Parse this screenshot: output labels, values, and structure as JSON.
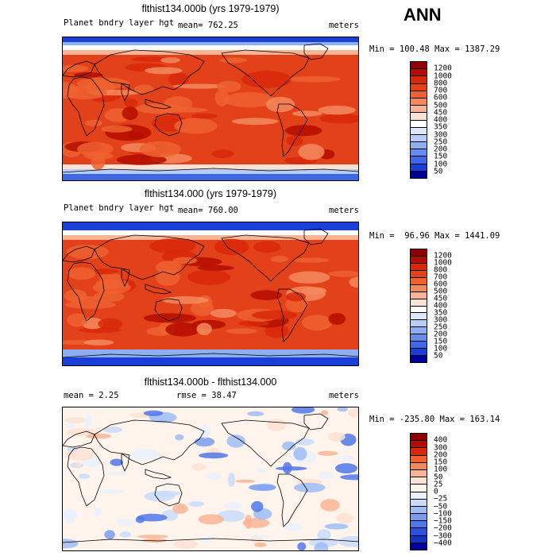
{
  "season": "ANN",
  "panels": [
    {
      "title": "flthist134.000b (yrs 1979-1979)",
      "left_label": "Planet bndry layer hgt",
      "mean_label": "mean= 762.25",
      "units": "meters",
      "minmax": "Min = 100.48 Max = 1387.29",
      "kind": "field",
      "colorbar": {
        "labels": [
          "1200",
          "1000",
          "800",
          "700",
          "600",
          "500",
          "450",
          "400",
          "350",
          "300",
          "250",
          "200",
          "150",
          "100",
          "50"
        ],
        "colors": [
          "#8b0000",
          "#b40d00",
          "#d8280a",
          "#e2411a",
          "#ee6130",
          "#f48a5e",
          "#f9b496",
          "#fde1d2",
          "#ffffff",
          "#dbe7fb",
          "#b5cdf7",
          "#8eaef2",
          "#668ded",
          "#3f67e6",
          "#1a3fd8",
          "#000098"
        ]
      }
    },
    {
      "title": "flthist134.000 (yrs 1979-1979)",
      "left_label": "Planet bndry layer hgt",
      "mean_label": "mean= 760.00",
      "units": "meters",
      "minmax": "Min =  96.96 Max = 1441.09",
      "kind": "field",
      "colorbar": {
        "labels": [
          "1200",
          "1000",
          "800",
          "700",
          "600",
          "500",
          "450",
          "400",
          "350",
          "300",
          "250",
          "200",
          "150",
          "100",
          "50"
        ],
        "colors": [
          "#8b0000",
          "#b40d00",
          "#d8280a",
          "#e2411a",
          "#ee6130",
          "#f48a5e",
          "#f9b496",
          "#fde1d2",
          "#ffffff",
          "#dbe7fb",
          "#b5cdf7",
          "#8eaef2",
          "#668ded",
          "#3f67e6",
          "#1a3fd8",
          "#000098"
        ]
      }
    },
    {
      "title": "flthist134.000b - flthist134.000",
      "left_label": "mean =   2.25",
      "mean_label": "rmse =  38.47",
      "units": "meters",
      "minmax": "Min = -235.80 Max = 163.14",
      "kind": "diff",
      "colorbar": {
        "labels": [
          "400",
          "300",
          "200",
          "150",
          "100",
          "50",
          "25",
          "0",
          "−25",
          "−50",
          "−100",
          "−150",
          "−200",
          "−300",
          "−400"
        ],
        "colors": [
          "#8b0000",
          "#b40d00",
          "#d8280a",
          "#ee6130",
          "#f48a5e",
          "#f9b496",
          "#fde1d2",
          "#fff4ec",
          "#eaf1fd",
          "#c9dbfa",
          "#9fbcf4",
          "#7a9cef",
          "#5078e9",
          "#2b52df",
          "#1333c8",
          "#000098"
        ]
      }
    }
  ]
}
